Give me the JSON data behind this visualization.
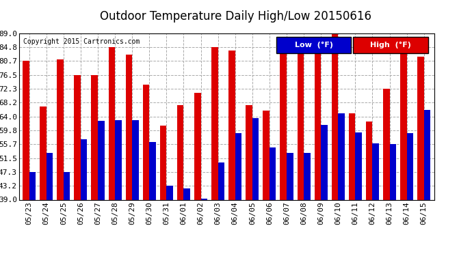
{
  "title": "Outdoor Temperature Daily High/Low 20150616",
  "copyright": "Copyright 2015 Cartronics.com",
  "legend_low": "Low  (°F)",
  "legend_high": "High  (°F)",
  "low_color": "#0000cc",
  "high_color": "#dd0000",
  "background_color": "#ffffff",
  "plot_bg_color": "#ffffff",
  "ylim": [
    39.0,
    89.0
  ],
  "yticks": [
    39.0,
    43.2,
    47.3,
    51.5,
    55.7,
    59.8,
    64.0,
    68.2,
    72.3,
    76.5,
    80.7,
    84.8,
    89.0
  ],
  "dates": [
    "05/23",
    "05/24",
    "05/25",
    "05/26",
    "05/27",
    "05/28",
    "05/29",
    "05/30",
    "05/31",
    "06/01",
    "06/02",
    "06/03",
    "06/04",
    "06/05",
    "06/06",
    "06/07",
    "06/08",
    "06/09",
    "06/10",
    "06/11",
    "06/12",
    "06/13",
    "06/14",
    "06/15"
  ],
  "highs": [
    80.7,
    66.9,
    81.1,
    76.5,
    76.5,
    84.8,
    82.6,
    73.5,
    61.2,
    67.4,
    71.1,
    84.8,
    83.8,
    67.5,
    65.7,
    84.8,
    83.5,
    87.0,
    89.0,
    65.0,
    62.4,
    72.3,
    84.8,
    82.0
  ],
  "lows": [
    47.3,
    53.1,
    47.3,
    57.2,
    62.6,
    63.0,
    63.0,
    56.3,
    43.2,
    42.4,
    39.4,
    50.2,
    59.0,
    63.5,
    54.7,
    53.0,
    53.0,
    61.5,
    65.0,
    59.2,
    56.0,
    55.7,
    59.1,
    66.0
  ],
  "grid_color": "#aaaaaa",
  "title_fontsize": 12,
  "copyright_fontsize": 7,
  "tick_fontsize": 8,
  "bar_width": 0.38
}
